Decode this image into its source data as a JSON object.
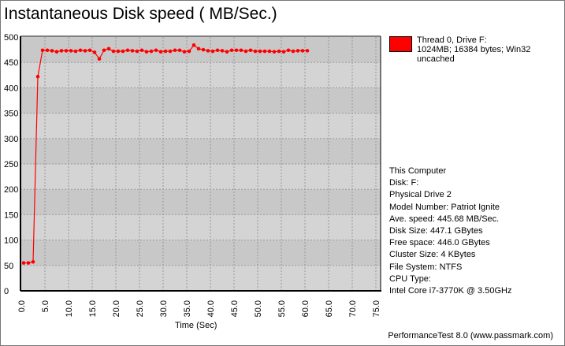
{
  "chart_data": {
    "type": "line",
    "title": "Instantaneous Disk speed ( MB/Sec.)",
    "xlabel": "Time (Sec)",
    "ylabel": "",
    "xlim": [
      0,
      75
    ],
    "ylim": [
      0,
      500
    ],
    "x_ticks": [
      "0.0",
      "5.0",
      "10.0",
      "15.0",
      "20.0",
      "25.0",
      "30.0",
      "35.0",
      "40.0",
      "45.0",
      "50.0",
      "55.0",
      "60.0",
      "65.0",
      "70.0",
      "75.0"
    ],
    "y_ticks": [
      "0",
      "50",
      "100",
      "150",
      "200",
      "250",
      "300",
      "350",
      "400",
      "450",
      "500"
    ],
    "grid": true,
    "legend_position": "right",
    "series": [
      {
        "name": "Thread 0, Drive F:",
        "name_line2": "1024MB; 16384 bytes; Win32 uncached",
        "color": "#ff0000",
        "x_start": 0.5,
        "x_step": 1.0,
        "values": [
          55,
          55,
          57,
          422,
          474,
          474,
          473,
          471,
          473,
          473,
          473,
          472,
          474,
          473,
          474,
          470,
          457,
          474,
          477,
          472,
          472,
          472,
          474,
          473,
          472,
          474,
          471,
          472,
          474,
          471,
          472,
          472,
          474,
          474,
          471,
          472,
          484,
          477,
          475,
          473,
          472,
          474,
          473,
          471,
          474,
          474,
          474,
          472,
          474,
          472,
          472,
          472,
          472,
          471,
          472,
          471,
          474,
          472,
          473,
          473,
          473
        ]
      }
    ]
  },
  "info": [
    "This Computer",
    "Disk: F:",
    "Physical Drive 2",
    "Model Number: Patriot Ignite",
    "Ave. speed: 445.68 MB/Sec.",
    "Disk Size: 447.1 GBytes",
    "Free space: 446.0 GBytes",
    "Cluster Size: 4 KBytes",
    "File System: NTFS",
    "CPU Type:",
    "Intel Core i7-3770K @ 3.50GHz"
  ],
  "footer": "PerformanceTest 8.0 (www.passmark.com)"
}
